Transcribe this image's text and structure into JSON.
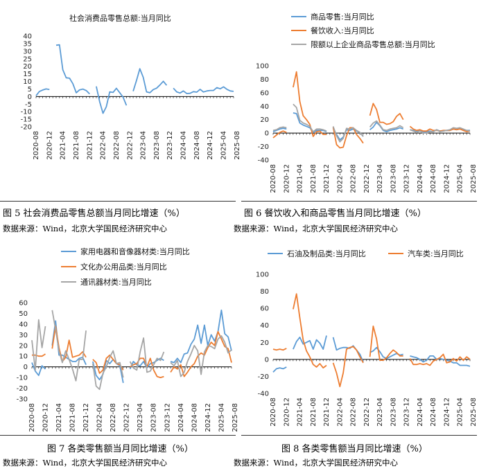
{
  "colors": {
    "blue": "#5b9bd5",
    "orange": "#ed7d31",
    "gray": "#a5a5a5"
  },
  "x_ticks": [
    "2020-08",
    "2020-12",
    "2021-04",
    "2021-08",
    "2021-12",
    "2022-04",
    "2022-08",
    "2022-12",
    "2023-04",
    "2023-08",
    "2023-12",
    "2024-04",
    "2024-08",
    "2024-12",
    "2025-04",
    "2025-08"
  ],
  "captions": {
    "fig5": "图 5 社会消费品零售总额当月同比增速（%）",
    "fig6": "图 6  餐饮收入和商品零售当月同比增速（%）",
    "fig7": "图 7 各类零售额当月同比增速（%）",
    "fig8": "图 8 各类零售额当月同比增速（%）"
  },
  "source_text": "数据来源：Wind，北京大学国民经济研究中心",
  "chart_data": [
    {
      "type": "line",
      "title": "社会消费品零售总额:当月同比",
      "ylim": [
        -20,
        40
      ],
      "yticks": [
        -20,
        -15,
        -10,
        -5,
        0,
        5,
        10,
        15,
        20,
        25,
        30,
        35,
        40
      ],
      "series": [
        {
          "name": "社会消费品零售总额:当月同比",
          "color": "#5b9bd5",
          "values": [
            0.5,
            3.3,
            4.3,
            5.0,
            4.6,
            null,
            33.9,
            34.2,
            17.7,
            12.4,
            12.1,
            8.5,
            2.5,
            4.4,
            4.9,
            3.9,
            1.7,
            null,
            6.7,
            -3.5,
            -11.1,
            -6.7,
            3.1,
            2.7,
            5.4,
            2.5,
            -0.5,
            -5.9,
            null,
            3.5,
            10.6,
            18.4,
            12.7,
            3.1,
            2.5,
            4.6,
            5.5,
            7.6,
            10.1,
            7.4,
            null,
            5.5,
            3.1,
            2.3,
            3.7,
            2.0,
            2.1,
            3.2,
            2.9,
            4.8,
            3.0,
            3.7,
            4.0,
            4.0,
            5.9,
            5.1,
            6.4,
            4.8,
            3.7,
            3.4
          ]
        }
      ]
    },
    {
      "type": "line",
      "title": "",
      "ylim": [
        -40,
        100
      ],
      "yticks": [
        -40,
        -20,
        0,
        20,
        40,
        60,
        80,
        100
      ],
      "legend": [
        "商品零售:当月同比",
        "餐饮收入:当月同比",
        "限额以上企业商品零售总额:当月同比"
      ],
      "series": [
        {
          "name": "商品零售:当月同比",
          "color": "#5b9bd5",
          "values": [
            2,
            4,
            6,
            7,
            6,
            null,
            30,
            29,
            15,
            12,
            10,
            8,
            1,
            4,
            4,
            4,
            2,
            null,
            7,
            -2,
            -10,
            -6,
            5,
            4,
            6,
            3,
            1,
            -5,
            null,
            5,
            9,
            16,
            11,
            4,
            2,
            4,
            5,
            6,
            8,
            6,
            null,
            5,
            4,
            2,
            4,
            1,
            2,
            3,
            2,
            5,
            3,
            3,
            4,
            4,
            6,
            5,
            7,
            5,
            4,
            4
          ]
        },
        {
          "name": "餐饮收入:当月同比",
          "color": "#ed7d31",
          "values": [
            -7,
            -3,
            1,
            3,
            1,
            null,
            68,
            91,
            47,
            26,
            20,
            13,
            -5,
            2,
            3,
            -2,
            -2,
            null,
            9,
            -17,
            -22,
            -21,
            -4,
            8,
            8,
            -2,
            -8,
            -15,
            null,
            26,
            44,
            35,
            16,
            16,
            13,
            14,
            17,
            25,
            29,
            20,
            null,
            10,
            6,
            4,
            5,
            3,
            3,
            6,
            4,
            4,
            3,
            4,
            4,
            4,
            6,
            5,
            6,
            4,
            2,
            3
          ]
        },
        {
          "name": "限额以上企业商品零售总额:当月同比",
          "color": "#a5a5a5",
          "values": [
            4,
            5,
            8,
            9,
            8,
            null,
            43,
            38,
            19,
            15,
            13,
            10,
            2,
            6,
            6,
            5,
            3,
            null,
            10,
            -4,
            -13,
            -8,
            7,
            6,
            8,
            4,
            1,
            -5,
            null,
            9,
            15,
            18,
            12,
            5,
            4,
            6,
            7,
            8,
            11,
            8,
            null,
            5,
            3,
            1,
            3,
            0,
            0,
            2,
            2,
            5,
            2,
            3,
            4,
            5,
            8,
            7,
            8,
            6,
            4,
            3
          ]
        }
      ]
    },
    {
      "type": "line",
      "title": "",
      "ylim": [
        -30,
        60
      ],
      "yticks": [
        -30,
        -20,
        -10,
        0,
        10,
        20,
        30,
        40,
        50,
        60
      ],
      "legend": [
        "家用电器和音像器材类:当月同比",
        "文化办公用品类:当月同比",
        "通讯器材类:当月同比"
      ],
      "series": [
        {
          "name": "家用电器和音像器材类:当月同比",
          "color": "#5b9bd5",
          "values": [
            4,
            -4,
            -8,
            1,
            -2,
            null,
            20,
            43,
            11,
            11,
            9,
            7,
            5,
            5,
            8,
            9,
            2,
            null,
            5,
            -8,
            -12,
            -7,
            6,
            3,
            7,
            3,
            1,
            -15,
            null,
            -2,
            5,
            2,
            1,
            5,
            -1,
            3,
            4,
            6,
            8,
            6,
            null,
            5,
            4,
            8,
            4,
            12,
            13,
            21,
            26,
            39,
            22,
            39,
            20,
            30,
            24,
            33,
            53,
            31,
            28,
            15
          ]
        },
        {
          "name": "文化办公用品类:当月同比",
          "color": "#ed7d31",
          "values": [
            11,
            11,
            10,
            10,
            12,
            null,
            17,
            38,
            18,
            5,
            9,
            25,
            9,
            10,
            11,
            14,
            9,
            null,
            7,
            4,
            -6,
            -3,
            8,
            11,
            7,
            3,
            2,
            -3,
            null,
            0,
            2,
            3,
            8,
            8,
            0,
            8,
            -3,
            -9,
            -10,
            -9,
            null,
            -5,
            0,
            -2,
            2,
            -9,
            -5,
            0,
            3,
            10,
            13,
            11,
            18,
            23,
            20,
            33,
            26,
            19,
            17,
            4
          ]
        },
        {
          "name": "通讯器材类:当月同比",
          "color": "#a5a5a5",
          "values": [
            25,
            -3,
            44,
            18,
            38,
            null,
            53,
            35,
            15,
            4,
            15,
            7,
            -2,
            -13,
            7,
            7,
            34,
            null,
            3,
            -18,
            -21,
            -6,
            0,
            9,
            15,
            3,
            4,
            -10,
            null,
            5,
            -1,
            -3,
            14,
            27,
            -5,
            -4,
            2,
            8,
            6,
            14,
            null,
            4,
            1,
            6,
            -9,
            -5,
            5,
            12,
            20,
            15,
            -7,
            14,
            20,
            19,
            17,
            26,
            29,
            23,
            13,
            16
          ]
        }
      ]
    },
    {
      "type": "line",
      "title": "",
      "ylim": [
        -40,
        100
      ],
      "yticks": [
        -40,
        -20,
        0,
        20,
        40,
        60,
        80,
        100
      ],
      "legend": [
        "石油及制品类:当月同比",
        "汽车类:当月同比"
      ],
      "series": [
        {
          "name": "石油及制品类:当月同比",
          "color": "#5b9bd5",
          "values": [
            -15,
            -11,
            -10,
            -11,
            -9,
            null,
            12,
            21,
            26,
            18,
            20,
            22,
            12,
            23,
            19,
            12,
            28,
            null,
            26,
            11,
            13,
            14,
            14,
            13,
            16,
            11,
            6,
            -3,
            null,
            8,
            10,
            14,
            9,
            3,
            1,
            3,
            5,
            7,
            5,
            6,
            null,
            4,
            3,
            2,
            0,
            -3,
            -1,
            4,
            4,
            0,
            1,
            0,
            -1,
            -2,
            -4,
            -4,
            -7,
            -7,
            -7,
            -8
          ]
        },
        {
          "name": "汽车类:当月同比",
          "color": "#ed7d31",
          "values": [
            12,
            11,
            12,
            11,
            13,
            null,
            59,
            77,
            49,
            23,
            10,
            3,
            -6,
            -9,
            -5,
            -10,
            -7,
            null,
            -4,
            -16,
            -32,
            -16,
            12,
            14,
            15,
            11,
            3,
            -4,
            null,
            3,
            39,
            24,
            -1,
            -1,
            2,
            7,
            11,
            8,
            4,
            4,
            null,
            1,
            -6,
            -6,
            -5,
            -6,
            -5,
            -7,
            -2,
            0,
            2,
            6,
            -4,
            -3,
            1,
            -2,
            3,
            -1,
            3,
            0
          ]
        }
      ]
    }
  ]
}
